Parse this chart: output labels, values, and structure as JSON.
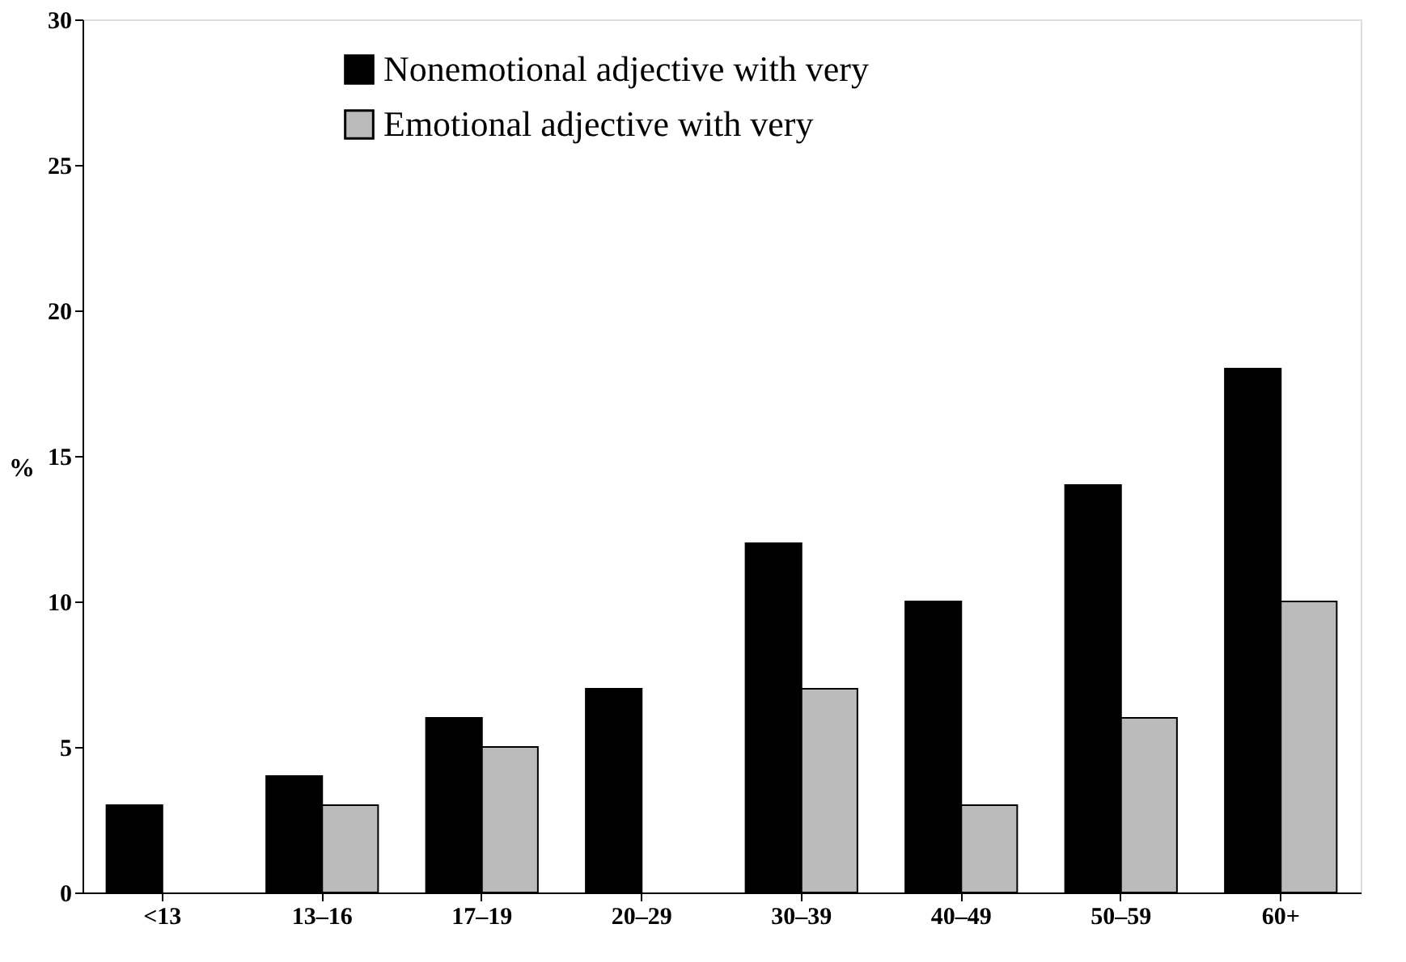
{
  "chart_data": {
    "type": "bar",
    "ylabel": "%",
    "categories": [
      "<13",
      "13–16",
      "17–19",
      "20–29",
      "30–39",
      "40–49",
      "50–59",
      "60+"
    ],
    "series": [
      {
        "name": "Nonemotional adjective with very",
        "color": "#000000",
        "values": [
          3,
          4,
          6,
          7,
          12,
          10,
          14,
          18
        ]
      },
      {
        "name": "Emotional adjective with very",
        "color": "#bbbbbb",
        "values": [
          null,
          3,
          5,
          null,
          7,
          3,
          6,
          10
        ]
      }
    ],
    "ylim": [
      0,
      30
    ],
    "yticks": [
      0,
      5,
      10,
      15,
      20,
      25,
      30
    ],
    "grid": false,
    "legend": "top"
  }
}
